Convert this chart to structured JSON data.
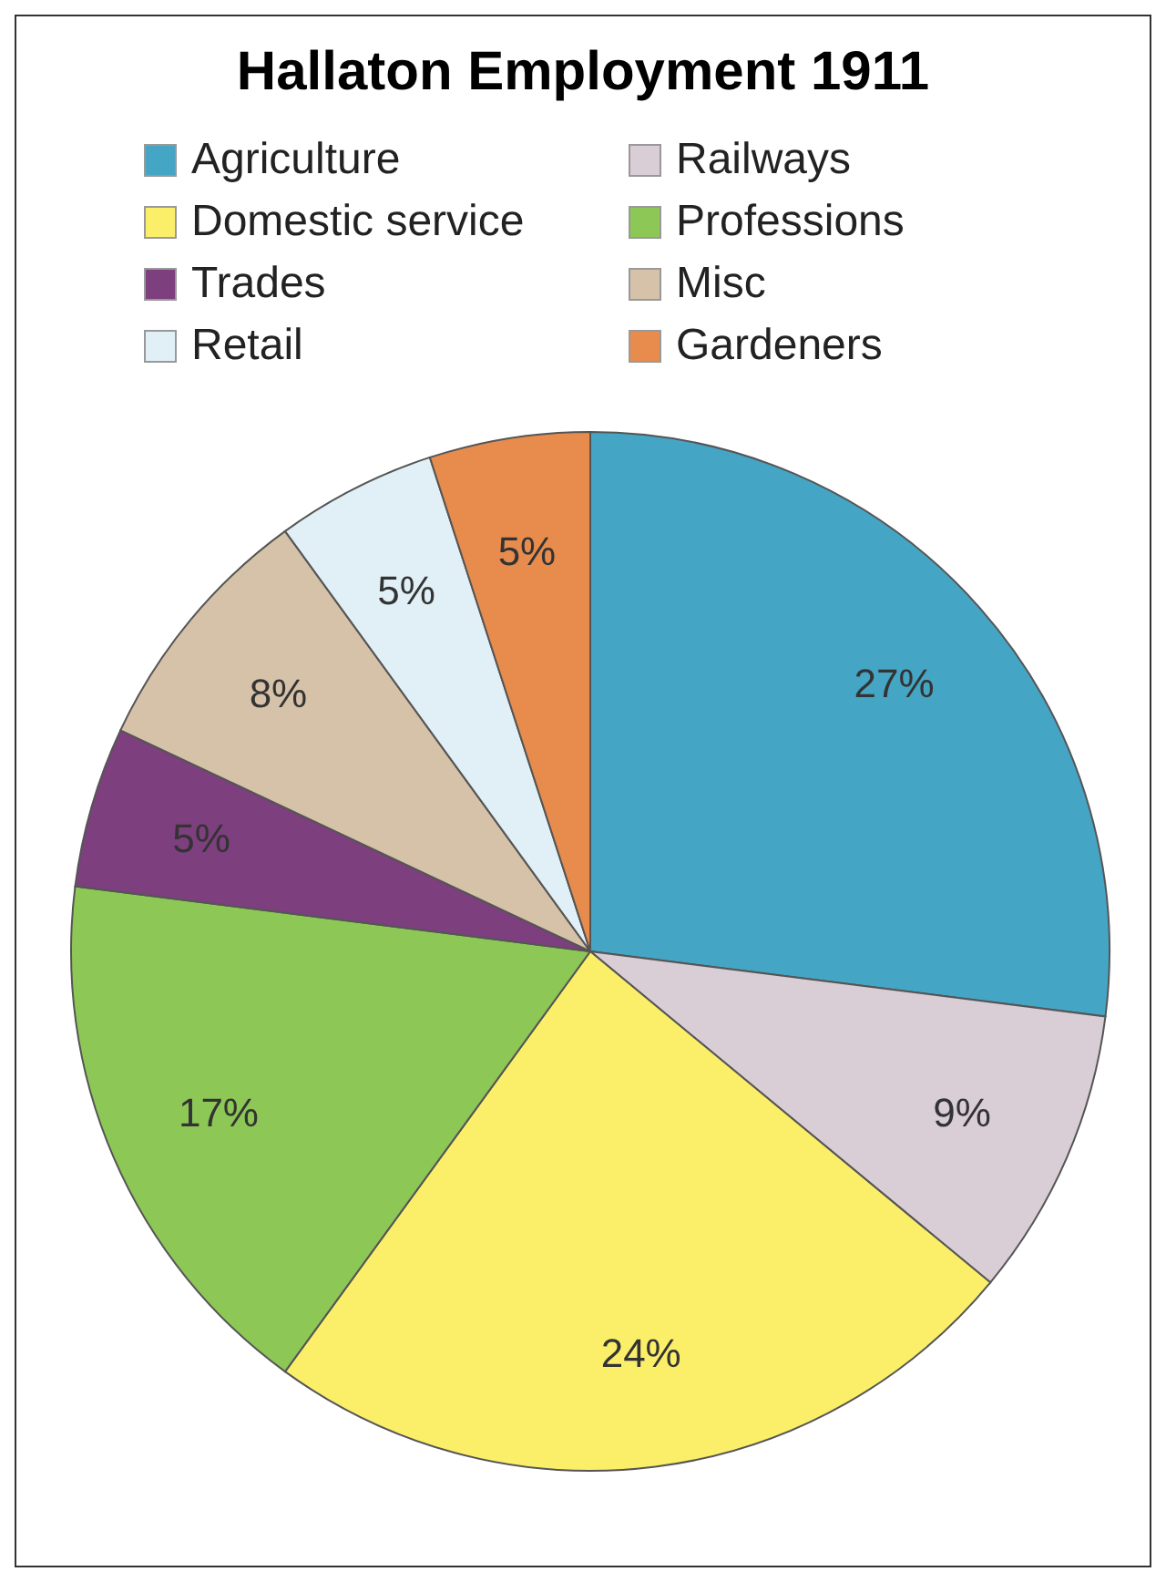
{
  "chart_data": {
    "type": "pie",
    "title": "Hallaton Employment 1911",
    "categories": [
      "Agriculture",
      "Railways",
      "Domestic service",
      "Professions",
      "Trades",
      "Misc",
      "Retail",
      "Gardeners"
    ],
    "values": [
      27,
      9,
      24,
      17,
      5,
      8,
      5,
      5
    ],
    "value_labels": [
      "27%",
      "9%",
      "24%",
      "17%",
      "5%",
      "8%",
      "5%",
      "5%"
    ],
    "colors": [
      "#45a5c4",
      "#d9cdd6",
      "#fbef6a",
      "#8dc856",
      "#7d3f7e",
      "#d6c2a8",
      "#e1eff6",
      "#e88c4e"
    ],
    "legend": "top"
  }
}
